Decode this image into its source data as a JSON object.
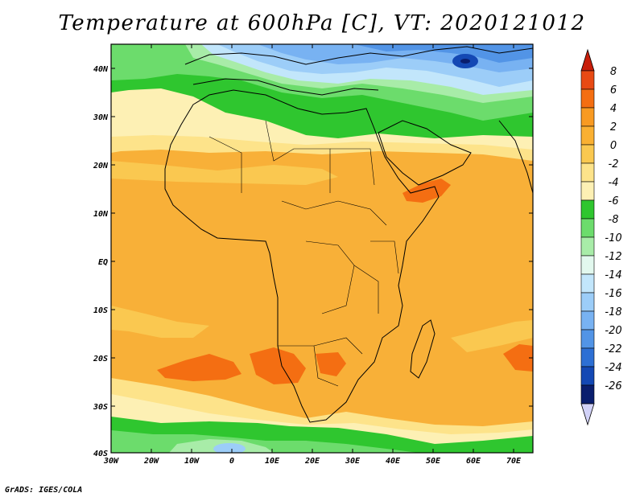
{
  "title": "Temperature at 600hPa [C], VT: 2020121012",
  "credit": "GrADS: IGES/COLA",
  "map": {
    "lon_ticks": [
      "30W",
      "20W",
      "10W",
      "0",
      "10E",
      "20E",
      "30E",
      "40E",
      "50E",
      "60E",
      "70E"
    ],
    "lat_ticks": [
      "40N",
      "30N",
      "20N",
      "10N",
      "EQ",
      "10S",
      "20S",
      "30S",
      "40S"
    ]
  },
  "colorbar": {
    "labels": [
      "8",
      "6",
      "4",
      "2",
      "0",
      "-2",
      "-4",
      "-6",
      "-8",
      "-10",
      "-12",
      "-14",
      "-16",
      "-18",
      "-20",
      "-22",
      "-24",
      "-26"
    ],
    "colors": [
      "#e84a14",
      "#f46e12",
      "#f89a22",
      "#fab032",
      "#fac850",
      "#fde38a",
      "#fdf0b4",
      "#2fc62f",
      "#6cdc6c",
      "#a8eca8",
      "#e2f8ee",
      "#c2e6fb",
      "#9ccdf8",
      "#78b2f2",
      "#5294e6",
      "#2d6fd4",
      "#1448b4",
      "#0a1e6e"
    ],
    "top_cap_color": "#c81e0a",
    "bottom_cap_color": "#d2d2f8"
  }
}
